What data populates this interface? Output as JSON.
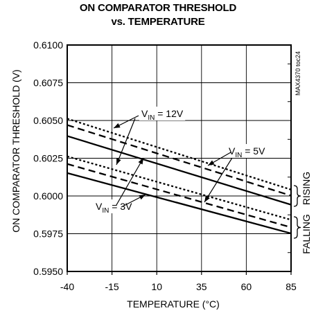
{
  "chart_data": {
    "type": "line",
    "title": "ON COMPARATOR THRESHOLD",
    "subtitle": "vs. TEMPERATURE",
    "xlabel": "TEMPERATURE (°C)",
    "ylabel": "ON COMPARATOR THRESHOLD (V)",
    "xlim": [
      -40,
      85
    ],
    "ylim": [
      0.595,
      0.61
    ],
    "x_ticks": [
      "-40",
      "-15",
      "10",
      "35",
      "60",
      "85"
    ],
    "y_ticks": [
      "0.6100",
      "0.6075",
      "0.6050",
      "0.6025",
      "0.6000",
      "0.5975",
      "0.5950"
    ],
    "grid": true,
    "watermark": "MAX4370 toc24",
    "series": [
      {
        "name": "VIN = 12V rising",
        "style": "dotted",
        "x": [
          -40,
          85
        ],
        "y": [
          0.60512,
          0.60042
        ]
      },
      {
        "name": "VIN = 5V rising",
        "style": "dashed",
        "x": [
          -40,
          85
        ],
        "y": [
          0.6047,
          0.60002
        ]
      },
      {
        "name": "VIN = 3V rising",
        "style": "solid",
        "x": [
          -40,
          85
        ],
        "y": [
          0.60397,
          0.59942
        ]
      },
      {
        "name": "VIN = 12V falling",
        "style": "dotted",
        "x": [
          -40,
          85
        ],
        "y": [
          0.60262,
          0.59842
        ]
      },
      {
        "name": "VIN = 5V falling",
        "style": "dashed",
        "x": [
          -40,
          85
        ],
        "y": [
          0.60212,
          0.59792
        ]
      },
      {
        "name": "VIN = 3V falling",
        "style": "solid",
        "x": [
          -40,
          85
        ],
        "y": [
          0.60152,
          0.59752
        ]
      }
    ],
    "annotations": {
      "v12": {
        "prefix": "V",
        "sub": "IN",
        "suffix": " = 12V"
      },
      "v5": {
        "prefix": "V",
        "sub": "IN",
        "suffix": " = 5V"
      },
      "v3": {
        "prefix": "V",
        "sub": "IN",
        "suffix": " = 3V"
      },
      "rising": "RISING",
      "falling": "FALLING"
    }
  }
}
